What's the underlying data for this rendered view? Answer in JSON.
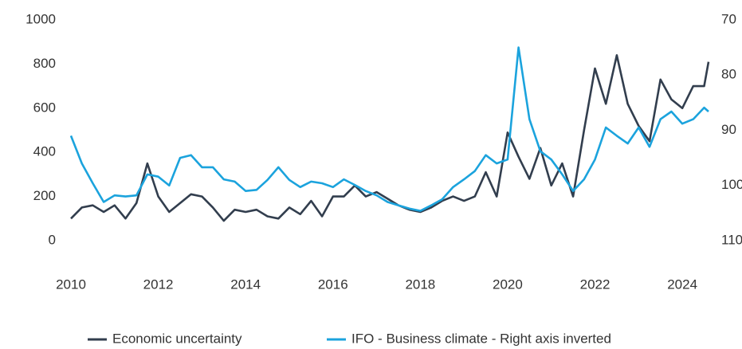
{
  "chart_data": {
    "type": "line",
    "x": [
      2010,
      2010.25,
      2010.5,
      2010.75,
      2011,
      2011.25,
      2011.5,
      2011.75,
      2012,
      2012.25,
      2012.5,
      2012.75,
      2013,
      2013.25,
      2013.5,
      2013.75,
      2014,
      2014.25,
      2014.5,
      2014.75,
      2015,
      2015.25,
      2015.5,
      2015.75,
      2016,
      2016.25,
      2016.5,
      2016.75,
      2017,
      2017.25,
      2017.5,
      2017.75,
      2018,
      2018.25,
      2018.5,
      2018.75,
      2019,
      2019.25,
      2019.5,
      2019.75,
      2020,
      2020.25,
      2020.5,
      2020.75,
      2021,
      2021.25,
      2021.5,
      2021.75,
      2022,
      2022.25,
      2022.5,
      2022.75,
      2023,
      2023.25,
      2023.5,
      2023.75,
      2024,
      2024.25,
      2024.5,
      2024.6
    ],
    "series": [
      {
        "name": "Economic uncertainty",
        "color": "#323e4e",
        "values": [
          100,
          150,
          160,
          130,
          160,
          100,
          170,
          350,
          200,
          130,
          170,
          210,
          200,
          150,
          90,
          140,
          130,
          140,
          110,
          100,
          150,
          120,
          180,
          110,
          200,
          200,
          250,
          200,
          220,
          190,
          160,
          140,
          130,
          150,
          180,
          200,
          180,
          200,
          310,
          200,
          490,
          380,
          280,
          420,
          250,
          350,
          200,
          500,
          780,
          620,
          840,
          620,
          520,
          450,
          730,
          640,
          600,
          700,
          700,
          810
        ]
      },
      {
        "name": "IFO - Business climate - Right axis inverted",
        "color": "#1ba3dd",
        "axis": "y2",
        "values": [
          91,
          96,
          99.6,
          103,
          101.8,
          102,
          101.8,
          98,
          98.4,
          100,
          95,
          94.5,
          96.7,
          96.7,
          98.9,
          99.3,
          101,
          100.8,
          99,
          96.7,
          99,
          100.3,
          99.3,
          99.6,
          100.3,
          98.9,
          99.9,
          101,
          101.8,
          103,
          103.6,
          104.2,
          104.6,
          103.6,
          102.5,
          100.3,
          98.9,
          97.4,
          94.5,
          96,
          95.3,
          75,
          88,
          93.8,
          95.3,
          98,
          101,
          98.9,
          95.3,
          89.5,
          91,
          92.4,
          89.5,
          93,
          88,
          86.6,
          88.8,
          88,
          85.9,
          86.6
        ]
      }
    ],
    "xlim": [
      2010,
      2024.6
    ],
    "xticks": [
      2010,
      2012,
      2014,
      2016,
      2018,
      2020,
      2022,
      2024
    ],
    "ylim": [
      0,
      1000
    ],
    "yticks": [
      0,
      200,
      400,
      600,
      800,
      1000
    ],
    "y2lim": [
      110,
      70
    ],
    "y2ticks": [
      70,
      80,
      90,
      100,
      110
    ],
    "legend": "bottom"
  }
}
